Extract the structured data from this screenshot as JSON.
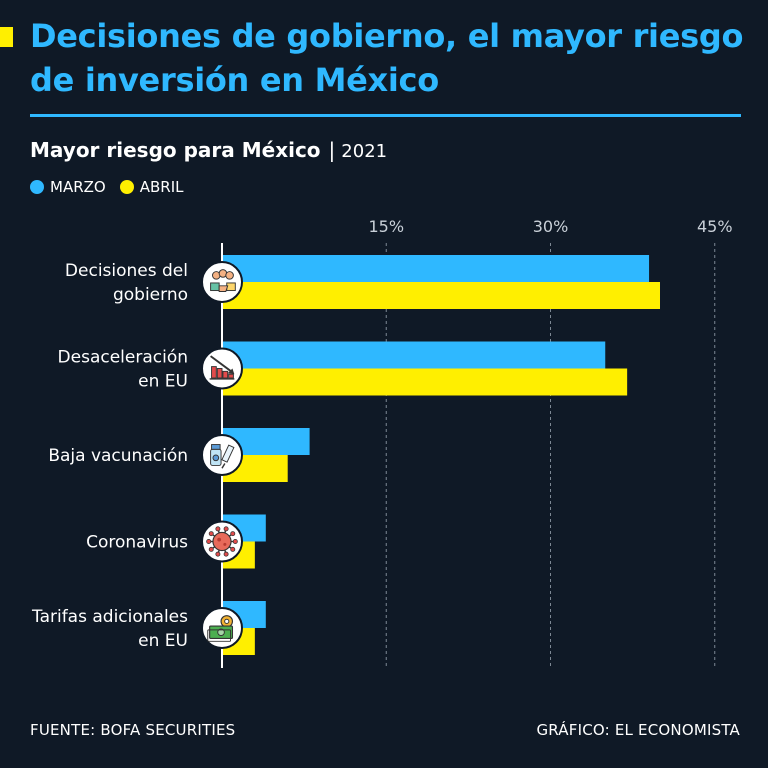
{
  "header": {
    "title": "Decisiones de gobierno, el mayor riesgo de inversión en México",
    "subtitle_bold": "Mayor riesgo para México",
    "subtitle_sep": "|",
    "subtitle_year": "2021"
  },
  "colors": {
    "background": "#0f1926",
    "marzo": "#2fb8ff",
    "abril": "#ffef00",
    "title": "#2fb8ff",
    "text": "#ffffff",
    "grid": "#7d8894"
  },
  "icons": [
    "team-handshake-icon",
    "declining-chart-icon",
    "vaccine-icon",
    "coronavirus-icon",
    "money-gear-icon"
  ],
  "chart_data": {
    "type": "bar",
    "orientation": "horizontal",
    "categories": [
      [
        "Decisiones del",
        "gobierno"
      ],
      [
        "Desaceleración",
        "en EU"
      ],
      [
        "Baja vacunación"
      ],
      [
        "Coronavirus"
      ],
      [
        "Tarifas adicionales",
        "en EU"
      ]
    ],
    "series": [
      {
        "name": "MARZO",
        "values": [
          39,
          35,
          8,
          4,
          4
        ]
      },
      {
        "name": "ABRIL",
        "values": [
          40,
          37,
          6,
          3,
          3
        ]
      }
    ],
    "xlim": [
      0,
      45
    ],
    "xticks": [
      15,
      30,
      45
    ],
    "xtick_labels": [
      "15%",
      "30%",
      "45%"
    ],
    "grid": true,
    "legend_position": "top-left"
  },
  "footer": {
    "source": "FUENTE: BOFA SECURITIES",
    "credit": "GRÁFICO: EL ECONOMISTA"
  }
}
